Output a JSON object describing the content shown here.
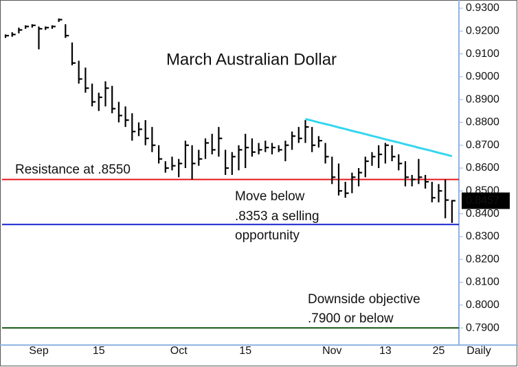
{
  "chart_data": {
    "type": "ohlc",
    "title": "March Australian Dollar",
    "x_label": "Daily",
    "categories": [
      null,
      null,
      null,
      null,
      null,
      "Sep",
      null,
      null,
      null,
      null,
      null,
      null,
      null,
      null,
      "15",
      null,
      null,
      null,
      null,
      null,
      null,
      null,
      null,
      null,
      null,
      null,
      "Oct",
      null,
      null,
      null,
      null,
      null,
      null,
      null,
      null,
      null,
      "15",
      null,
      null,
      null,
      null,
      null,
      null,
      null,
      null,
      null,
      null,
      null,
      null,
      "Nov",
      null,
      null,
      null,
      null,
      null,
      null,
      null,
      "13",
      null,
      null,
      null,
      null,
      null,
      null,
      null,
      "25",
      null,
      null
    ],
    "color": "#000000",
    "high": [
      0.9185,
      0.9195,
      0.9215,
      0.9225,
      0.923,
      0.922,
      0.922,
      0.9225,
      0.9255,
      0.923,
      0.915,
      0.907,
      0.904,
      0.897,
      0.893,
      0.898,
      0.896,
      0.889,
      0.887,
      0.884,
      0.88,
      0.881,
      0.878,
      0.87,
      0.863,
      0.865,
      0.864,
      0.872,
      0.87,
      0.868,
      0.873,
      0.875,
      0.878,
      0.868,
      0.867,
      0.87,
      0.875,
      0.873,
      0.871,
      0.872,
      0.871,
      0.87,
      0.872,
      0.876,
      0.878,
      0.881,
      0.878,
      0.874,
      0.871,
      0.865,
      0.862,
      0.854,
      0.858,
      0.86,
      0.865,
      0.867,
      0.87,
      0.871,
      0.87,
      0.866,
      0.863,
      0.857,
      0.864,
      0.857,
      0.854,
      0.853,
      0.855,
      0.846
    ],
    "low": [
      0.917,
      0.9175,
      0.919,
      0.921,
      0.9215,
      0.912,
      0.9205,
      0.921,
      0.924,
      0.917,
      0.905,
      0.897,
      0.893,
      0.887,
      0.885,
      0.887,
      0.884,
      0.88,
      0.878,
      0.872,
      0.874,
      0.87,
      0.867,
      0.862,
      0.858,
      0.859,
      0.856,
      0.86,
      0.855,
      0.861,
      0.864,
      0.866,
      0.865,
      0.857,
      0.857,
      0.859,
      0.86,
      0.865,
      0.866,
      0.867,
      0.866,
      0.867,
      0.863,
      0.868,
      0.871,
      0.871,
      0.867,
      0.869,
      0.862,
      0.853,
      0.848,
      0.847,
      0.849,
      0.852,
      0.856,
      0.861,
      0.86,
      0.862,
      0.863,
      0.859,
      0.852,
      0.852,
      0.853,
      0.851,
      0.845,
      0.845,
      0.838,
      0.836
    ],
    "close": [
      0.918,
      0.9185,
      0.9205,
      0.922,
      0.9225,
      0.921,
      0.9215,
      0.922,
      0.925,
      0.918,
      0.906,
      0.899,
      0.895,
      0.889,
      0.891,
      0.895,
      0.886,
      0.883,
      0.881,
      0.876,
      0.877,
      0.873,
      0.87,
      0.864,
      0.86,
      0.861,
      0.862,
      0.87,
      0.862,
      0.864,
      0.871,
      0.868,
      0.873,
      0.86,
      0.865,
      0.868,
      0.869,
      0.867,
      0.868,
      0.869,
      0.869,
      0.868,
      0.87,
      0.874,
      0.873,
      0.878,
      0.87,
      0.872,
      0.865,
      0.856,
      0.85,
      0.849,
      0.856,
      0.858,
      0.863,
      0.865,
      0.866,
      0.87,
      0.865,
      0.862,
      0.856,
      0.855,
      0.856,
      0.854,
      0.847,
      0.85,
      0.846,
      0.8457
    ],
    "trendline": {
      "color": "#33d6ee",
      "values": [
        null,
        null,
        null,
        null,
        null,
        null,
        null,
        null,
        null,
        null,
        null,
        null,
        null,
        null,
        null,
        null,
        null,
        null,
        null,
        null,
        null,
        null,
        null,
        null,
        null,
        null,
        null,
        null,
        null,
        null,
        null,
        null,
        null,
        null,
        null,
        null,
        null,
        null,
        null,
        null,
        null,
        null,
        null,
        null,
        null,
        0.8815,
        0.8808,
        0.88,
        0.8793,
        0.8786,
        0.8778,
        0.8771,
        0.8763,
        0.8756,
        0.8749,
        0.8741,
        0.8734,
        0.8726,
        0.8719,
        0.8712,
        0.8704,
        0.8697,
        0.8689,
        0.8682,
        0.8675,
        0.8667,
        0.866,
        0.8652
      ]
    },
    "levels": [
      {
        "value": 0.855,
        "color": "#e8141c"
      },
      {
        "value": 0.8353,
        "color": "#1420d0"
      },
      {
        "value": 0.79,
        "color": "#1a5c1a"
      }
    ],
    "annotations": [
      {
        "text": "Resistance at .8550",
        "color": "#e8141c"
      },
      {
        "text": "Move below",
        "color": "#1420d0"
      },
      {
        "text": ".8353 a selling",
        "color": "#1420d0"
      },
      {
        "text": "opportunity",
        "color": "#1420d0"
      },
      {
        "text": "Downside objective",
        "color": "#1a5c1a"
      },
      {
        "text": ".7900 or below",
        "color": "#1a5c1a"
      }
    ],
    "last_price": 0.8457,
    "ylim": [
      0.7825,
      0.9327
    ],
    "yticks": [
      {
        "value": 0.79,
        "label": "0.7900"
      },
      {
        "value": 0.8,
        "label": "0.8000"
      },
      {
        "value": 0.81,
        "label": "0.8100"
      },
      {
        "value": 0.82,
        "label": "0.8200"
      },
      {
        "value": 0.83,
        "label": "0.8300"
      },
      {
        "value": 0.84,
        "label": "0.8400"
      },
      {
        "value": 0.85,
        "label": "0.8500"
      },
      {
        "value": 0.86,
        "label": "0.8600"
      },
      {
        "value": 0.87,
        "label": "0.8700"
      },
      {
        "value": 0.88,
        "label": "0.8800"
      },
      {
        "value": 0.89,
        "label": "0.8900"
      },
      {
        "value": 0.9,
        "label": "0.9000"
      },
      {
        "value": 0.91,
        "label": "0.9100"
      },
      {
        "value": 0.92,
        "label": "0.9200"
      },
      {
        "value": 0.93,
        "label": "0.9300"
      }
    ]
  }
}
